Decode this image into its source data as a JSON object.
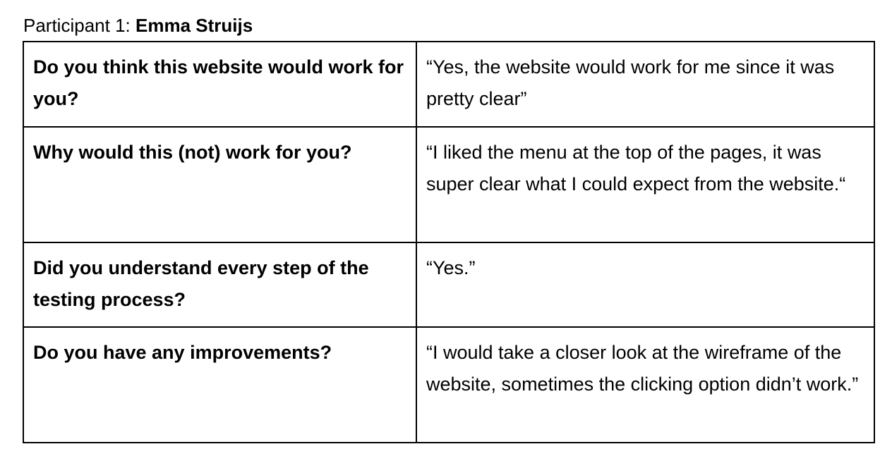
{
  "participant": {
    "label": "Participant 1: ",
    "name": "Emma Struijs"
  },
  "rows": [
    {
      "question": "Do you think this website would work for you?",
      "answer": "“Yes, the website would work for me since it was pretty clear”"
    },
    {
      "question": "Why would this (not) work for you?",
      "answer": "“I liked the menu at the top of the pages, it was super clear what I could expect from the website.“"
    },
    {
      "question": "Did you understand every step of the testing process?",
      "answer": "“Yes.”"
    },
    {
      "question": "Do you have any improvements?",
      "answer": "“I would take a closer look at the wireframe of the website, sometimes the clicking option didn’t work.”"
    }
  ]
}
